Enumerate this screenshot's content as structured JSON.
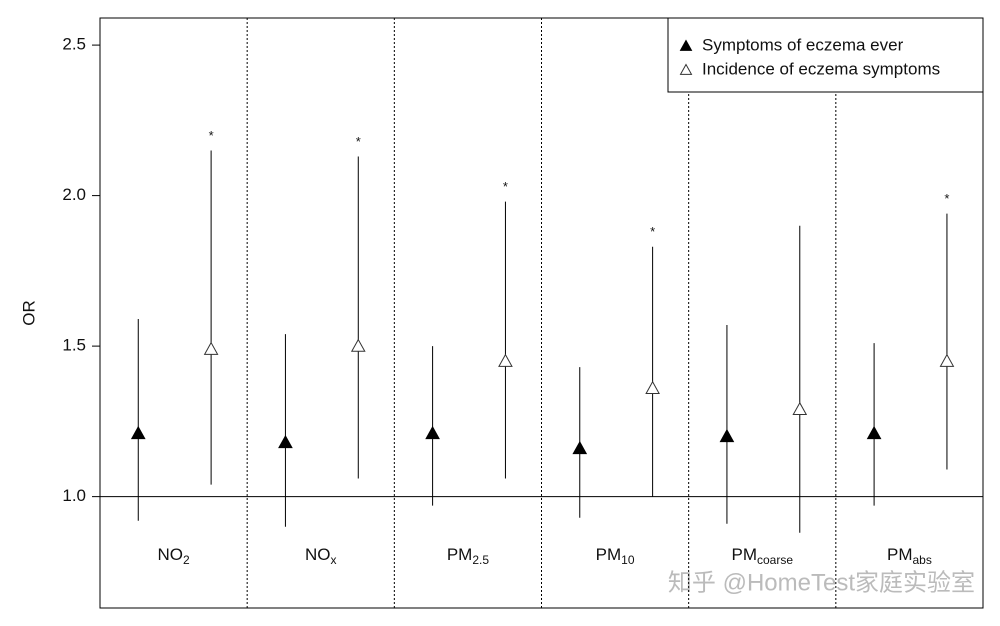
{
  "chart_data": {
    "type": "errorpoint",
    "y_label": "OR",
    "categories": [
      {
        "base": "NO",
        "sub": "2"
      },
      {
        "base": "NO",
        "sub": "x"
      },
      {
        "base": "PM",
        "sub": "2.5"
      },
      {
        "base": "PM",
        "sub": "10"
      },
      {
        "base": "PM",
        "sub": "coarse"
      },
      {
        "base": "PM",
        "sub": "abs"
      }
    ],
    "series": [
      {
        "name": "Symptoms of eczema ever",
        "marker": "filled",
        "color": "#000000",
        "values": [
          1.21,
          1.18,
          1.21,
          1.16,
          1.2,
          1.21
        ],
        "lower": [
          0.92,
          0.9,
          0.97,
          0.93,
          0.91,
          0.97
        ],
        "upper": [
          1.59,
          1.54,
          1.5,
          1.43,
          1.57,
          1.51
        ]
      },
      {
        "name": "Incidence of eczema symptoms",
        "marker": "open",
        "color": "#333333",
        "values": [
          1.49,
          1.5,
          1.45,
          1.36,
          1.29,
          1.45
        ],
        "lower": [
          1.04,
          1.06,
          1.06,
          1.0,
          0.88,
          1.09
        ],
        "upper": [
          2.15,
          2.13,
          1.98,
          1.83,
          1.9,
          1.94
        ],
        "significance": [
          "*",
          "*",
          "*",
          "*",
          null,
          "*"
        ]
      }
    ],
    "reference_line": 1.0,
    "ylim": [
      0.63,
      2.59
    ],
    "yticks": [
      {
        "value": 1.0,
        "label": "1.0"
      },
      {
        "value": 1.5,
        "label": "1.5"
      },
      {
        "value": 2.0,
        "label": "2.0"
      },
      {
        "value": 2.5,
        "label": "2.5"
      }
    ],
    "legend_position": "upper right",
    "watermark": "知乎 @HomeTest家庭实验室"
  }
}
